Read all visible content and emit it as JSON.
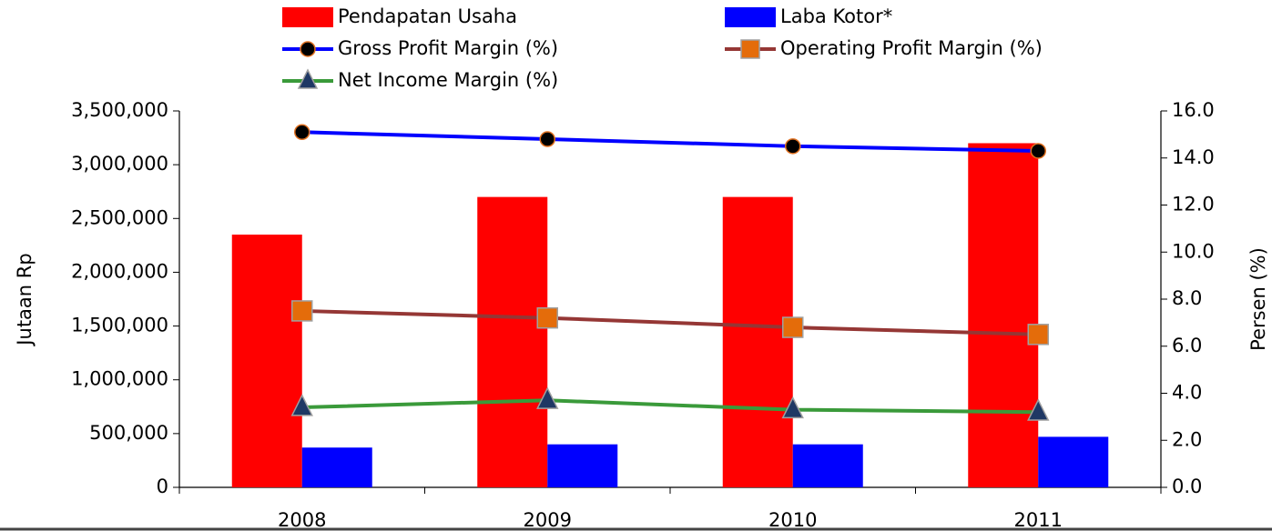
{
  "chart_data": {
    "type": "combo",
    "categories": [
      "2008",
      "2009",
      "2010",
      "2011"
    ],
    "ylabel": "Jutaan Rp",
    "y2label": "Persen (%)",
    "ylim": [
      0,
      3500000
    ],
    "yticks": [
      0,
      {
        "value": 500000,
        "label": "500,000"
      },
      {
        "value": 1000000,
        "label": "1,000,000"
      },
      {
        "value": 1500000,
        "label": "1,500,000"
      },
      {
        "value": 2000000,
        "label": "2,000,000"
      },
      {
        "value": 2500000,
        "label": "2,500,000"
      },
      {
        "value": 3000000,
        "label": "3,000,000"
      },
      {
        "value": 3500000,
        "label": "3,500,000"
      }
    ],
    "y2lim": [
      0,
      16
    ],
    "y2ticks": [
      {
        "value": 0,
        "label": "0.0"
      },
      {
        "value": 2,
        "label": "2.0"
      },
      {
        "value": 4,
        "label": "4.0"
      },
      {
        "value": 6,
        "label": "6.0"
      },
      {
        "value": 8,
        "label": "8.0"
      },
      {
        "value": 10,
        "label": "10.0"
      },
      {
        "value": 12,
        "label": "12.0"
      },
      {
        "value": 14,
        "label": "14.0"
      },
      {
        "value": 16,
        "label": "16.0"
      }
    ],
    "series": [
      {
        "name": "Pendapatan Usaha",
        "type": "bar",
        "color": "#ff0000",
        "values": [
          2350000,
          2700000,
          2700000,
          3200000
        ]
      },
      {
        "name": "Laba Kotor*",
        "type": "bar",
        "color": "#0000ff",
        "values": [
          370000,
          400000,
          400000,
          470000
        ]
      },
      {
        "name": "Gross Profit Margin (%)",
        "type": "line",
        "axis": "y2",
        "color": "#0000ff",
        "marker": "circle",
        "marker_color": "#000000",
        "marker_edge": "#e07020",
        "values": [
          15.1,
          14.8,
          14.5,
          14.3
        ]
      },
      {
        "name": "Operating Profit Margin (%)",
        "type": "line",
        "axis": "y2",
        "color": "#953735",
        "marker": "square",
        "marker_color": "#e46c0a",
        "marker_edge": "#a0a0a0",
        "values": [
          7.5,
          7.2,
          6.8,
          6.5
        ]
      },
      {
        "name": "Net Income Margin (%)",
        "type": "line",
        "axis": "y2",
        "color": "#3a9a3a",
        "marker": "triangle",
        "marker_color": "#1f3864",
        "marker_edge": "#a0a0a0",
        "values": [
          3.4,
          3.7,
          3.3,
          3.2
        ]
      }
    ]
  }
}
